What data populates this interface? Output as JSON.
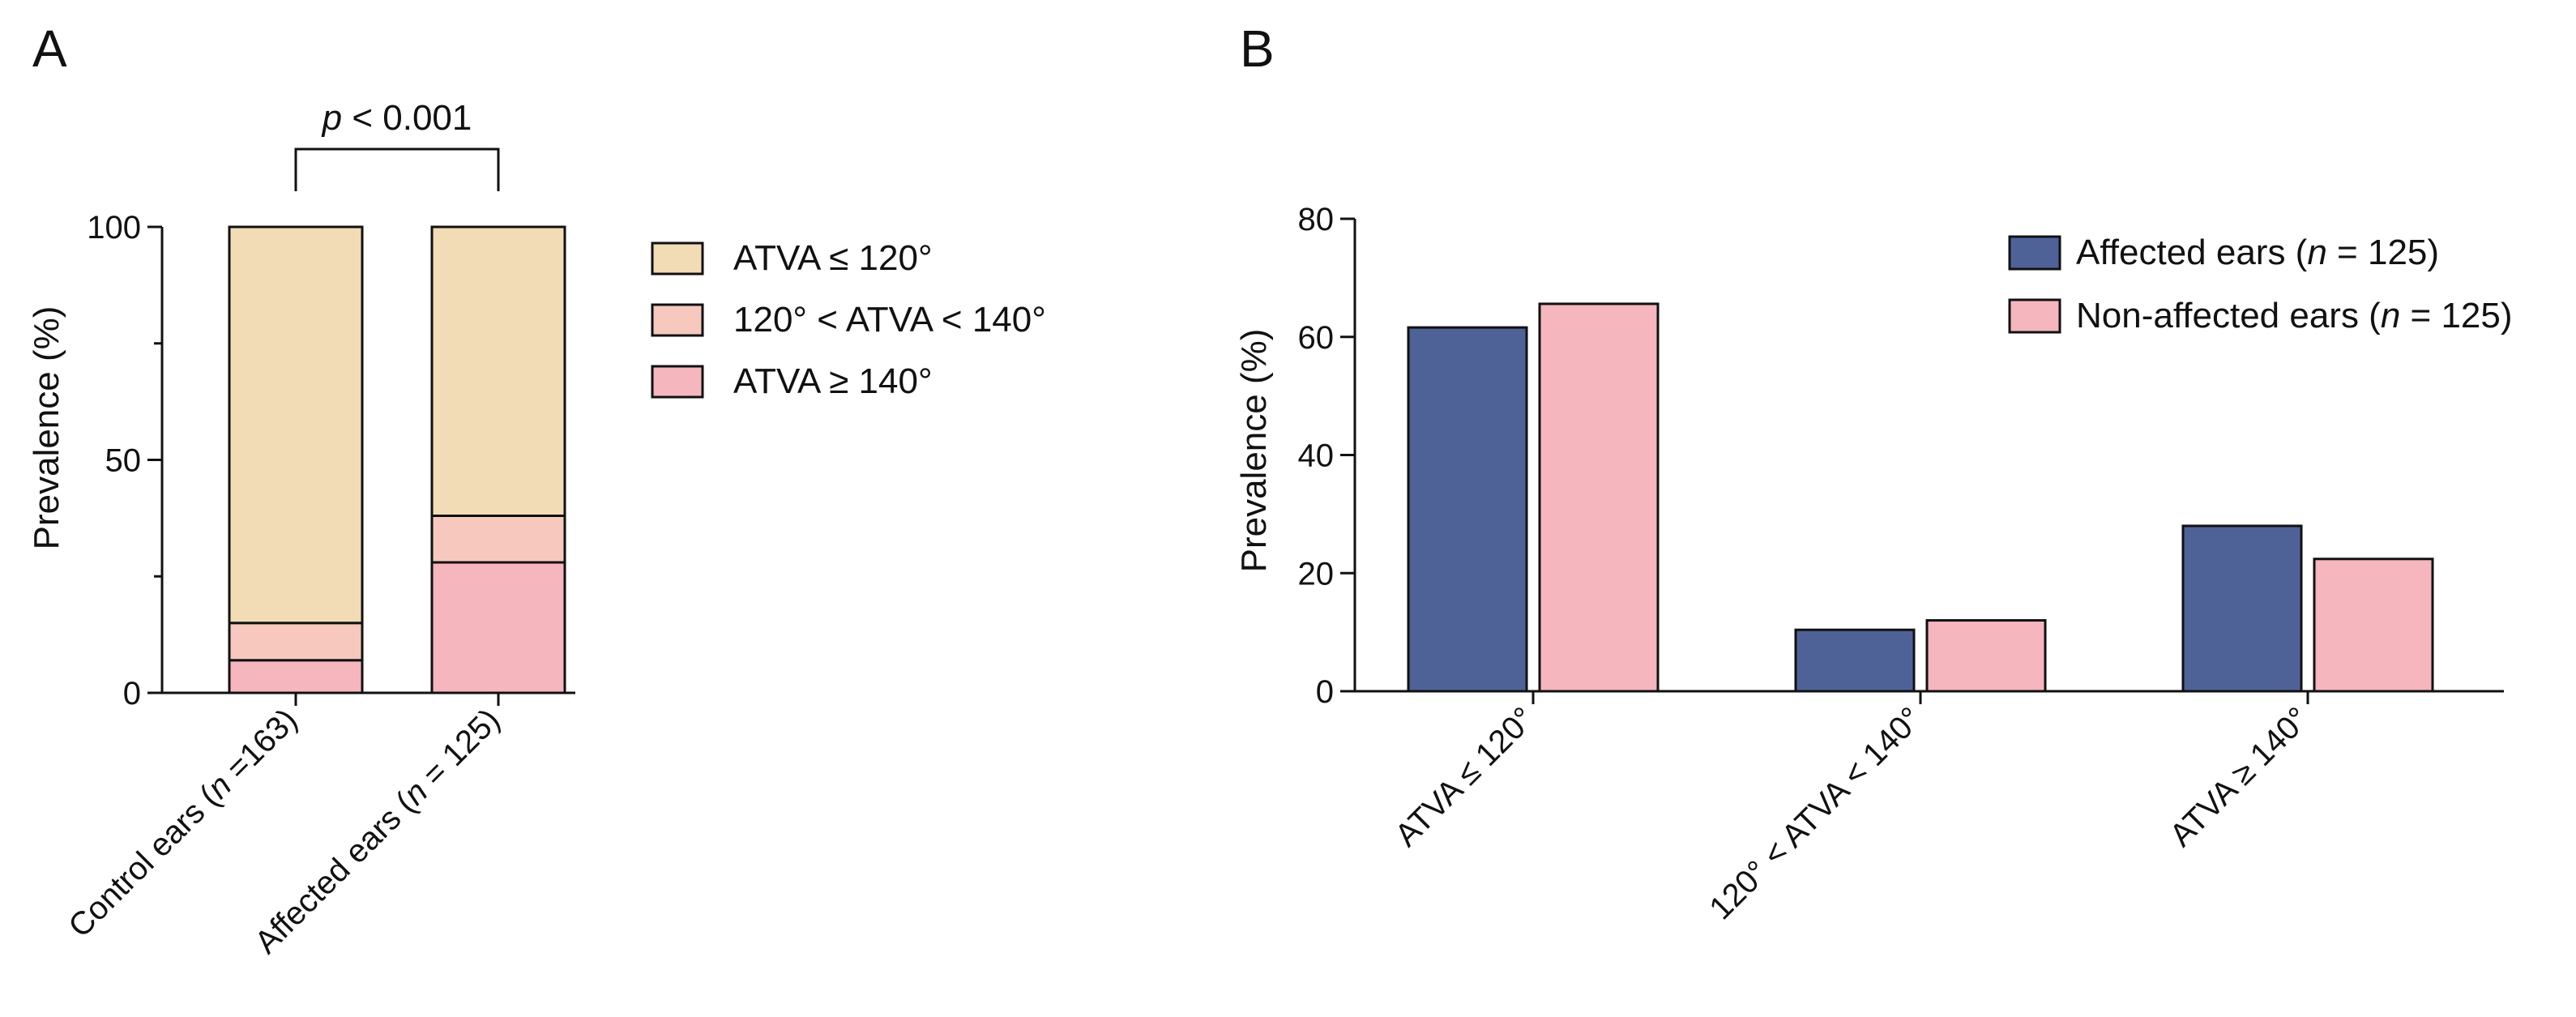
{
  "chart_data": [
    {
      "panel": "A",
      "type": "bar",
      "stacked": true,
      "categories": [
        {
          "prefix": "Control ears (",
          "n": "n",
          "suffix": " =163)"
        },
        {
          "prefix": "Affected ears (",
          "n": "n",
          "suffix": " = 125)"
        }
      ],
      "series": [
        {
          "name": "ATVA ≥ 140°",
          "color": "#F5B6BE",
          "values": [
            7,
            28
          ]
        },
        {
          "name": "120° < ATVA < 140°",
          "color": "#F6C8BE",
          "values": [
            8,
            10
          ]
        },
        {
          "name": "ATVA ≤ 120°",
          "color": "#F2DCB6",
          "values": [
            85,
            62
          ]
        }
      ],
      "legend_order": [
        "ATVA ≤ 120°",
        "120° < ATVA < 140°",
        "ATVA ≥ 140°"
      ],
      "ylabel": "Prevalence (%)",
      "ylim": [
        0,
        100
      ],
      "yticks": [
        "0",
        "50",
        "100"
      ],
      "annotation": {
        "italic": "p",
        "text": " < 0.001"
      }
    },
    {
      "panel": "B",
      "type": "bar",
      "stacked": false,
      "categories": [
        "ATVA ≤ 120°",
        "120° < ATVA < 140°",
        "ATVA ≥ 140°"
      ],
      "series": [
        {
          "prefix": "Affected ears (",
          "n": "n",
          "suffix": " = 125)",
          "color": "#4F6298",
          "values": [
            61.6,
            10.4,
            28
          ]
        },
        {
          "prefix": "Non-affected ears (",
          "n": "n",
          "suffix": " = 125)",
          "color": "#F5B6BE",
          "values": [
            65.6,
            12,
            22.4
          ]
        }
      ],
      "ylabel": "Prevalence (%)",
      "ylim": [
        0,
        80
      ],
      "yticks": [
        "0",
        "20",
        "40",
        "60",
        "80"
      ]
    }
  ]
}
